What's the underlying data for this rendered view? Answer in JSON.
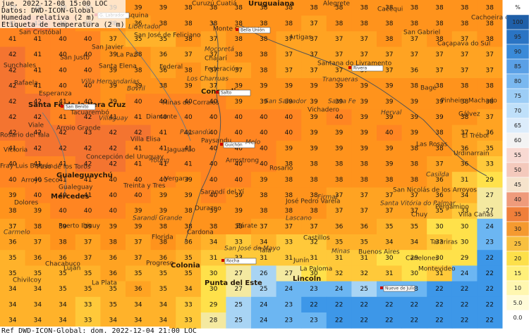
{
  "header": {
    "date": "jue. 2022-12-08 15:00 LOC",
    "source": "Datos: DWD-ICON-Global",
    "field": "Humedad relativa (2 m)",
    "label": "Etiqueta de temperatura (2 m)"
  },
  "footer": "Ref DWD-ICON-Global: dom. 2022-12-04 21:00 LOC",
  "colorbar": {
    "unit": "%",
    "ticks": [
      100,
      95,
      90,
      85,
      80,
      75,
      70,
      65,
      60,
      55,
      50,
      45,
      40,
      35,
      30,
      25,
      20,
      15,
      10,
      {
        "value": 5,
        "label": "5.0"
      },
      {
        "value": 0,
        "label": "0.0"
      }
    ],
    "colors": [
      "#1f5fa8",
      "#2a74c4",
      "#3a8ad8",
      "#5aa0e6",
      "#7ab8f0",
      "#9ccdf6",
      "#bfe0fa",
      "#dcecfb",
      "#f3f3f3",
      "#f8d9d2",
      "#f4c9bc",
      "#f6e3cc",
      "#ef9b7b",
      "#f07f3a",
      "#f59a30",
      "#f8c040",
      "#fde04a",
      "#fff07a",
      "#fff7b0",
      "#fffbd8",
      "#ffffff"
    ]
  },
  "grid": {
    "values": [
      [
        38,
        38,
        38,
        39,
        39,
        39,
        39,
        38,
        38,
        38,
        38,
        38,
        38,
        38,
        38,
        38,
        38,
        38,
        38,
        38
      ],
      [
        41,
        42,
        40,
        39,
        38,
        36,
        38,
        38,
        38,
        38,
        38,
        38,
        37,
        38,
        38,
        38,
        38,
        38,
        38,
        38
      ],
      [
        41,
        41,
        40,
        40,
        37,
        35,
        35,
        38,
        37,
        38,
        38,
        37,
        37,
        37,
        37,
        38,
        37,
        38,
        37,
        38
      ],
      [
        42,
        41,
        40,
        40,
        39,
        38,
        36,
        37,
        37,
        38,
        38,
        37,
        37,
        37,
        37,
        37,
        37,
        37,
        37,
        37
      ],
      [
        42,
        41,
        40,
        40,
        39,
        38,
        36,
        38,
        37,
        37,
        38,
        37,
        37,
        37,
        37,
        37,
        36,
        37,
        37,
        37
      ],
      [
        42,
        41,
        40,
        40,
        39,
        39,
        38,
        39,
        37,
        39,
        39,
        39,
        39,
        39,
        39,
        39,
        38,
        38,
        38,
        38
      ],
      [
        42,
        42,
        41,
        40,
        39,
        40,
        40,
        40,
        40,
        39,
        39,
        39,
        39,
        39,
        39,
        39,
        39,
        39,
        38,
        38
      ],
      [
        42,
        42,
        41,
        42,
        41,
        41,
        40,
        40,
        40,
        40,
        40,
        40,
        39,
        40,
        39,
        39,
        39,
        39,
        38,
        37
      ],
      [
        42,
        42,
        42,
        43,
        42,
        42,
        41,
        41,
        40,
        40,
        40,
        40,
        39,
        39,
        39,
        40,
        39,
        38,
        37,
        36
      ],
      [
        41,
        42,
        42,
        42,
        42,
        41,
        41,
        41,
        40,
        40,
        40,
        39,
        39,
        39,
        39,
        39,
        38,
        38,
        36,
        35
      ],
      [
        40,
        41,
        41,
        42,
        42,
        41,
        41,
        41,
        40,
        40,
        40,
        38,
        38,
        38,
        38,
        39,
        38,
        37,
        36,
        33
      ],
      [
        40,
        40,
        41,
        41,
        40,
        40,
        40,
        39,
        40,
        40,
        39,
        38,
        38,
        38,
        38,
        38,
        38,
        36,
        31,
        29
      ],
      [
        39,
        40,
        40,
        41,
        40,
        40,
        39,
        39,
        40,
        39,
        38,
        38,
        38,
        37,
        37,
        37,
        37,
        36,
        34,
        27
      ],
      [
        38,
        39,
        40,
        40,
        40,
        39,
        39,
        38,
        39,
        39,
        38,
        38,
        38,
        37,
        37,
        37,
        37,
        35,
        33,
        27
      ],
      [
        37,
        38,
        39,
        39,
        39,
        39,
        38,
        38,
        38,
        38,
        37,
        37,
        37,
        36,
        36,
        35,
        35,
        30,
        30,
        24
      ],
      [
        36,
        37,
        38,
        37,
        38,
        37,
        38,
        36,
        34,
        33,
        34,
        33,
        32,
        35,
        35,
        34,
        34,
        33,
        30,
        23
      ],
      [
        35,
        36,
        36,
        37,
        36,
        37,
        36,
        35,
        31,
        33,
        31,
        31,
        31,
        31,
        31,
        30,
        29,
        30,
        29,
        22
      ],
      [
        35,
        35,
        35,
        35,
        36,
        35,
        35,
        35,
        30,
        27,
        26,
        27,
        30,
        32,
        32,
        31,
        30,
        31,
        24,
        22
      ],
      [
        34,
        34,
        35,
        35,
        35,
        36,
        35,
        34,
        30,
        27,
        25,
        24,
        23,
        24,
        25,
        24,
        23,
        22,
        22,
        22
      ],
      [
        34,
        34,
        34,
        33,
        35,
        34,
        34,
        33,
        29,
        25,
        24,
        23,
        22,
        22,
        22,
        22,
        22,
        22,
        22,
        22
      ],
      [
        34,
        34,
        34,
        33,
        34,
        34,
        34,
        33,
        28,
        25,
        24,
        23,
        23,
        22,
        22,
        22,
        22,
        22,
        22,
        22
      ]
    ]
  },
  "places": [
    "Curuzú Cuatiá",
    "Uruguaiana",
    "Alegrete",
    "Cacequi",
    "Cachoeira do Sul",
    "Esquina",
    "G. Labrador",
    "San Cristóbal",
    "Monte Caseros",
    "Bella Unión",
    "Artigas",
    "San Gabriel",
    "Caçapava do Sul",
    "Libertador",
    "San José de Feliciano",
    "San Javier",
    "La Paz",
    "Mocoretá",
    "Chajarí",
    "Santana do Livramento",
    "Rivera",
    "Sunchales",
    "San Justo",
    "Santa Elena",
    "Federal",
    "Federación",
    "Tranqueras",
    "Bagé",
    "Rafaela",
    "Villa Hernandarias",
    "Los Charruas",
    "Bovril",
    "Concordia",
    "Salto",
    "Esperanza",
    "Pinheiro Machado",
    "Santa Fe de la Vera Cruz",
    "San Salvador",
    "Minas de Corrales",
    "Santa Fe",
    "San Benito",
    "Tacuarembó",
    "Vichadero",
    "Herval",
    "Gálvez",
    "Viale",
    "Villaguay",
    "Diamante",
    "Arroio Grande",
    "El Trébol",
    "Rosario del Tala",
    "Villa Elisa",
    "Paysandú",
    "Paysandu",
    "Guichón",
    "Melo",
    "Las Rosas",
    "Victoria",
    "Concepción del Uruguay",
    "Jaguarão",
    "Urdinarrain",
    "Young",
    "Armstrong",
    "Fray Luis Beltrán",
    "Paso de los Toros",
    "Rosario",
    "Gualeguaychú",
    "Vergara",
    "Casilda",
    "Arroyo Seco",
    "Gualeguay",
    "Treinta y Tres",
    "San Nicolás de los Arroyos",
    "Mercedes",
    "Sarandí del Yí",
    "Firmat",
    "Dolores",
    "Durazno",
    "José Pedro Varela",
    "Santa Vitória do Palmar",
    "Pergamino",
    "Puerto Ibicuy",
    "Sarandí Grande",
    "Lascano",
    "Chuy",
    "Villa Cañas",
    "Carmelo",
    "Cardona",
    "Zárate",
    "Florida",
    "Castillos",
    "Tarariras",
    "San José de Mayo",
    "Tala",
    "Minas",
    "Buenos Aires",
    "Colonia",
    "Rocha",
    "Canelones",
    "Junín",
    "Chacabuco",
    "Luján",
    "Progreso",
    "La Paloma",
    "Montevideo",
    "Lincoln",
    "Chivilcoy",
    "La Plata",
    "Punta del Este",
    "Nueve de Julio"
  ]
}
